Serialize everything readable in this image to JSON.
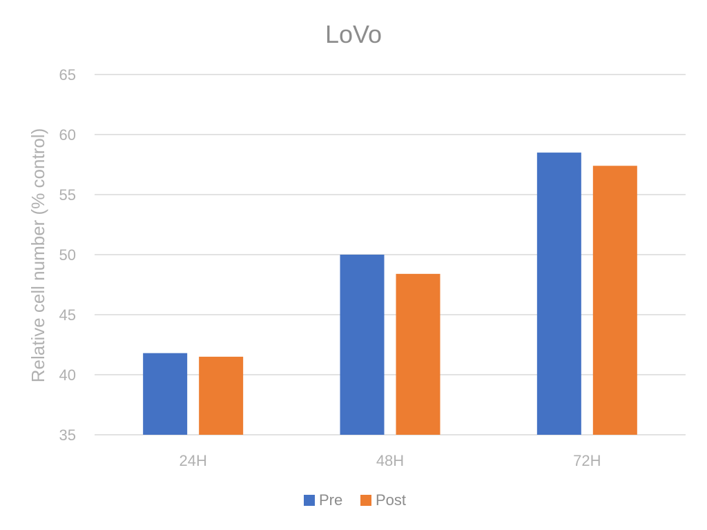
{
  "chart_data": {
    "type": "bar",
    "title": "LoVo",
    "xlabel": "",
    "ylabel": "Relative cell number (% control)",
    "categories": [
      "24H",
      "48H",
      "72H"
    ],
    "series": [
      {
        "name": "Pre",
        "values": [
          41.8,
          50.0,
          58.5
        ],
        "color": "#4472c4"
      },
      {
        "name": "Post",
        "values": [
          41.5,
          48.4,
          57.4
        ],
        "color": "#ed7d31"
      }
    ],
    "ylim": [
      35,
      65
    ],
    "yticks": [
      35,
      40,
      45,
      50,
      55,
      60,
      65
    ],
    "grid": true,
    "legend_position": "bottom"
  }
}
